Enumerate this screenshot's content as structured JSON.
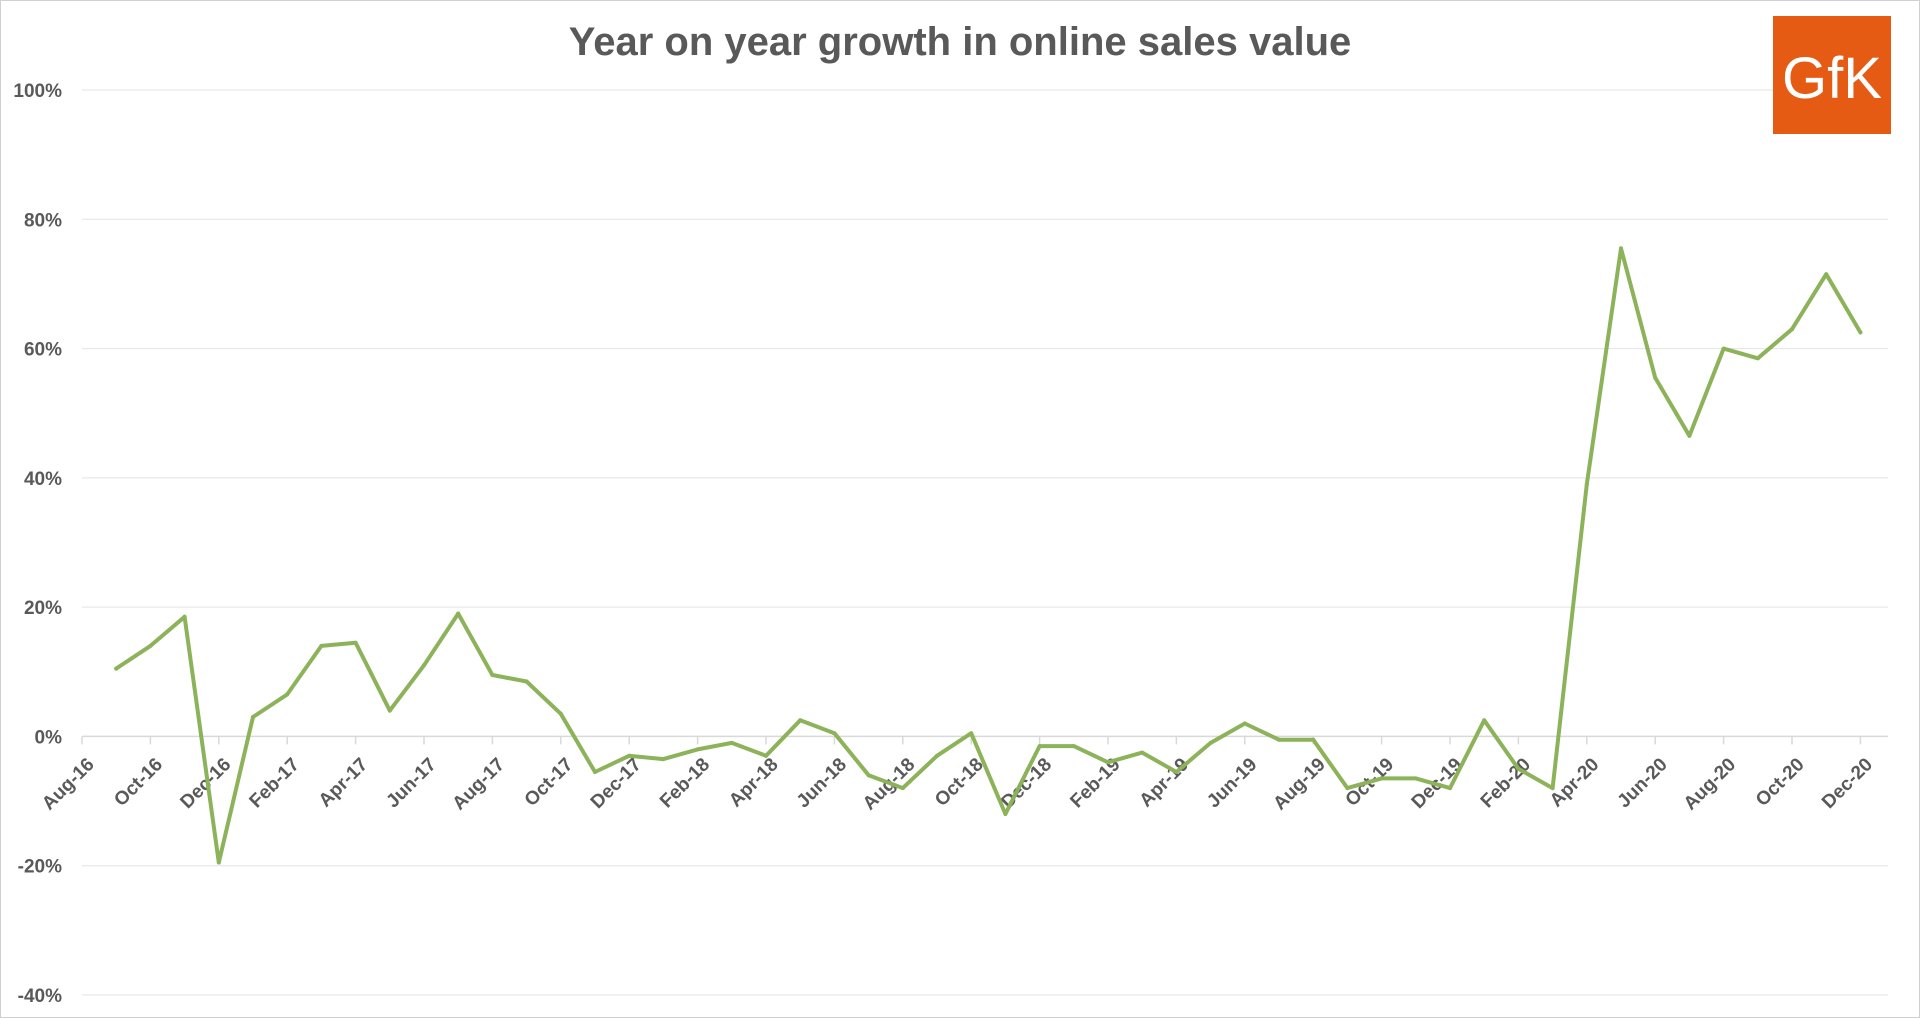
{
  "chart_data": {
    "type": "line",
    "title": "Year on year growth in online sales value",
    "xlabel": "",
    "ylabel": "",
    "ylim": [
      -40,
      100
    ],
    "y_ticks": [
      "100%",
      "80%",
      "60%",
      "40%",
      "20%",
      "0%",
      "-20%",
      "-40%"
    ],
    "y_tick_values": [
      100,
      80,
      60,
      40,
      20,
      0,
      -20,
      -40
    ],
    "x_tick_labels": [
      "Aug-16",
      "Oct-16",
      "Dec-16",
      "Feb-17",
      "Apr-17",
      "Jun-17",
      "Aug-17",
      "Oct-17",
      "Dec-17",
      "Feb-18",
      "Apr-18",
      "Jun-18",
      "Aug-18",
      "Oct-18",
      "Dec-18",
      "Feb-19",
      "Apr-19",
      "Jun-19",
      "Aug-19",
      "Oct-19",
      "Dec-19",
      "Feb-20",
      "Apr-20",
      "Jun-20",
      "Aug-20",
      "Oct-20",
      "Dec-20"
    ],
    "categories": [
      "Aug-16",
      "Sep-16",
      "Oct-16",
      "Nov-16",
      "Dec-16",
      "Jan-17",
      "Feb-17",
      "Mar-17",
      "Apr-17",
      "May-17",
      "Jun-17",
      "Jul-17",
      "Aug-17",
      "Sep-17",
      "Oct-17",
      "Nov-17",
      "Dec-17",
      "Jan-18",
      "Feb-18",
      "Mar-18",
      "Apr-18",
      "May-18",
      "Jun-18",
      "Jul-18",
      "Aug-18",
      "Sep-18",
      "Oct-18",
      "Nov-18",
      "Dec-18",
      "Jan-19",
      "Feb-19",
      "Mar-19",
      "Apr-19",
      "May-19",
      "Jun-19",
      "Jul-19",
      "Aug-19",
      "Sep-19",
      "Oct-19",
      "Nov-19",
      "Dec-19",
      "Jan-20",
      "Feb-20",
      "Mar-20",
      "Apr-20",
      "May-20",
      "Jun-20",
      "Jul-20",
      "Aug-20",
      "Sep-20",
      "Oct-20",
      "Nov-20",
      "Dec-20"
    ],
    "series": [
      {
        "color": "#8cb35a",
        "values": [
          null,
          10.5,
          14,
          18.5,
          -19.5,
          3,
          6.5,
          14,
          14.5,
          4,
          11,
          19,
          9.5,
          8.5,
          3.5,
          -5.5,
          -3,
          -3.5,
          -2,
          -1,
          -3,
          2.5,
          0.5,
          -6,
          -8,
          -3,
          0.5,
          -12,
          -1.5,
          -1.5,
          -4,
          -2.5,
          -5.5,
          -1,
          2,
          -0.5,
          -0.5,
          -8,
          -6.5,
          -6.5,
          -8,
          2.5,
          -5,
          -8,
          39,
          75.5,
          55.5,
          46.5,
          60,
          58.5,
          63,
          71.5,
          62.5
        ]
      }
    ],
    "grid": true,
    "legend": "none"
  },
  "logo": {
    "text": "GfK",
    "background": "#e55b13"
  }
}
